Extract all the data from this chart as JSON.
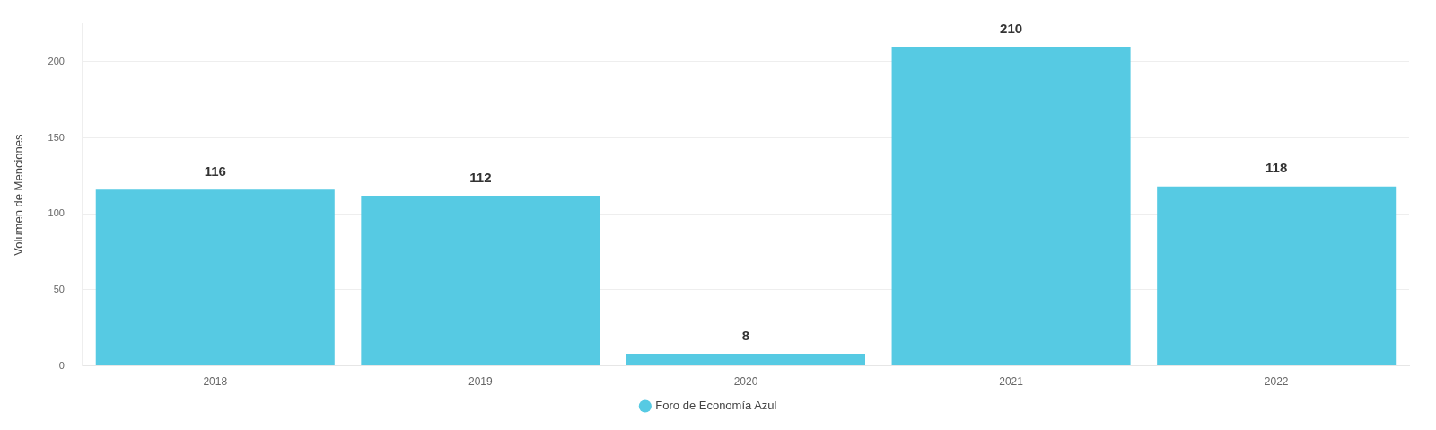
{
  "chart_data": {
    "type": "bar",
    "ylabel": "Volumen de Menciones",
    "categories": [
      "2018",
      "2019",
      "2020",
      "2021",
      "2022"
    ],
    "series": [
      {
        "name": "Foro de Economía Azul",
        "color": "#56cae3",
        "values": [
          116,
          112,
          8,
          210,
          118
        ]
      }
    ],
    "ylim": [
      0,
      225
    ],
    "yticks": [
      0,
      50,
      100,
      150,
      200
    ],
    "grid": "y",
    "legend": "bottom",
    "data_labels": true
  }
}
